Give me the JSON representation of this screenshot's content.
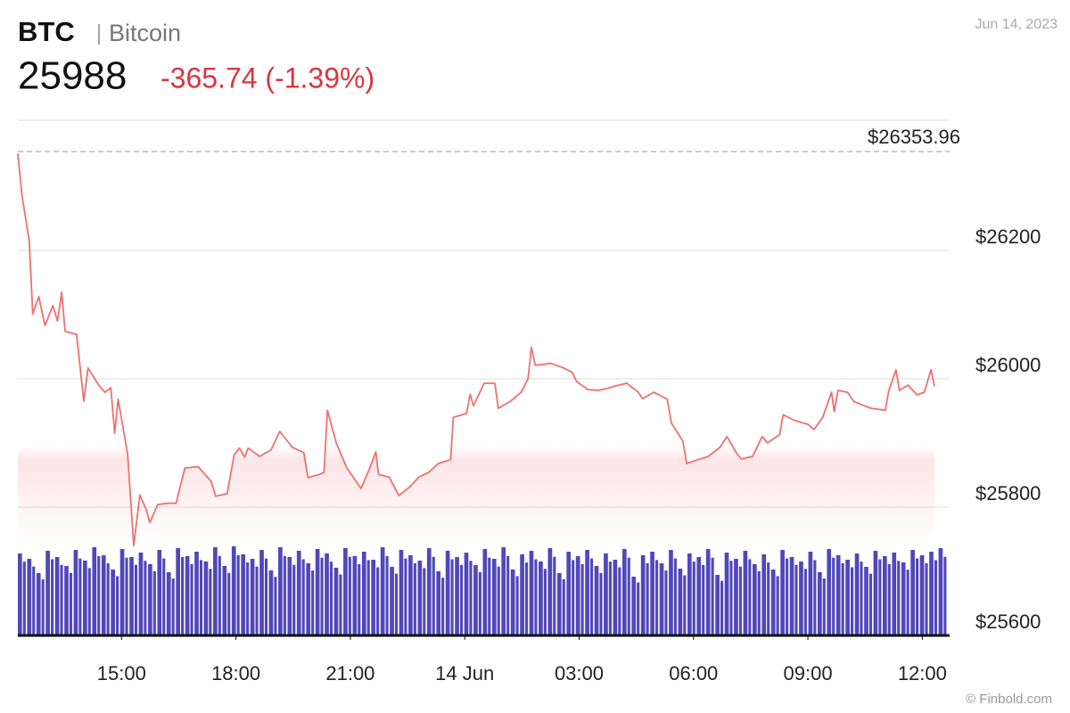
{
  "header": {
    "symbol": "BTC",
    "name": "Bitcoin",
    "price": 25988,
    "change": "-365.74 (-1.39%)",
    "date": "Jun 14, 2023"
  },
  "footer": {
    "credit": "© Finbold.com"
  },
  "chart_data": {
    "type": "line",
    "x": [
      12.28,
      12.39,
      12.58,
      12.67,
      12.83,
      12.99,
      13.2,
      13.32,
      13.43,
      13.52,
      13.82,
      14.01,
      14.12,
      14.4,
      14.56,
      14.72,
      14.82,
      14.91,
      15.16,
      15.32,
      15.48,
      15.65,
      15.74,
      15.95,
      16.2,
      16.43,
      16.66,
      17.01,
      17.35,
      17.47,
      17.77,
      17.95,
      18.09,
      18.23,
      18.32,
      18.62,
      18.92,
      19.15,
      19.48,
      19.78,
      19.89,
      20.19,
      20.31,
      20.4,
      20.63,
      20.91,
      21.28,
      21.51,
      21.67,
      21.74,
      22.02,
      22.27,
      22.55,
      22.8,
      23.05,
      23.31,
      23.63,
      23.7,
      24.05,
      24.14,
      24.23,
      24.51,
      24.79,
      24.88,
      25.2,
      25.48,
      25.66,
      25.75,
      25.85,
      26.26,
      26.59,
      26.82,
      26.93,
      27.23,
      27.51,
      27.74,
      27.97,
      28.25,
      28.55,
      28.66,
      28.96,
      29.31,
      29.42,
      29.72,
      29.82,
      30.12,
      30.39,
      30.69,
      30.88,
      31.11,
      31.25,
      31.55,
      31.8,
      31.94,
      32.26,
      32.35,
      32.65,
      33.0,
      33.16,
      33.39,
      33.62,
      33.69,
      33.79,
      34.04,
      34.2,
      34.39,
      34.66,
      35.03,
      35.12,
      35.31,
      35.4,
      35.63,
      35.86,
      36.05,
      36.23,
      36.32
    ],
    "series": [
      {
        "name": "BTC",
        "color": "#f07070",
        "values": [
          26351,
          26285,
          26215,
          26101,
          26128,
          26083,
          26114,
          26090,
          26135,
          26074,
          26069,
          25965,
          26017,
          25990,
          25979,
          25986,
          25915,
          25968,
          25882,
          25740,
          25819,
          25796,
          25776,
          25804,
          25806,
          25806,
          25861,
          25863,
          25840,
          25817,
          25821,
          25881,
          25892,
          25878,
          25892,
          25879,
          25889,
          25918,
          25893,
          25885,
          25846,
          25851,
          25854,
          25951,
          25900,
          25861,
          25829,
          25861,
          25886,
          25851,
          25847,
          25818,
          25831,
          25847,
          25854,
          25868,
          25874,
          25940,
          25946,
          25976,
          25958,
          25993,
          25993,
          25954,
          25965,
          25979,
          26000,
          26049,
          26021,
          26024,
          26017,
          26010,
          25996,
          25983,
          25982,
          25985,
          25989,
          25993,
          25979,
          25969,
          25979,
          25968,
          25931,
          25903,
          25868,
          25874,
          25879,
          25893,
          25910,
          25886,
          25875,
          25879,
          25910,
          25900,
          25913,
          25944,
          25935,
          25929,
          25921,
          25940,
          25979,
          25949,
          25982,
          25979,
          25965,
          25960,
          25954,
          25951,
          25981,
          26014,
          25982,
          25990,
          25975,
          25979,
          26014,
          25988
        ]
      }
    ],
    "reference": {
      "value": 26353.96,
      "label": "$26353.96"
    },
    "volume": {
      "color": "#5048b8",
      "values": [
        92,
        86,
        70,
        95,
        88,
        78,
        96,
        84,
        99,
        90,
        74,
        97,
        88,
        93,
        80,
        96,
        71,
        98,
        89,
        94,
        83,
        99,
        78,
        100,
        91,
        86,
        96,
        73,
        99,
        88,
        95,
        81,
        97,
        92,
        76,
        98,
        89,
        94,
        85,
        99,
        77,
        96,
        90,
        84,
        98,
        72,
        95,
        88,
        93,
        79,
        97,
        86,
        99,
        74,
        91,
        95,
        83,
        98,
        70,
        94,
        89,
        96,
        78,
        92,
        85,
        97,
        66,
        90,
        94,
        81,
        96,
        75,
        92,
        88,
        97,
        68,
        93,
        86,
        95,
        80,
        91,
        74,
        96,
        88,
        83,
        94,
        71,
        97,
        90,
        85,
        92,
        77,
        95,
        89,
        93,
        82,
        96,
        90,
        94,
        98
      ]
    },
    "xlim": [
      12.28,
      36.67
    ],
    "xticks": [
      {
        "value": 15,
        "label": "15:00"
      },
      {
        "value": 18,
        "label": "18:00"
      },
      {
        "value": 21,
        "label": "21:00"
      },
      {
        "value": 24,
        "label": "14 Jun"
      },
      {
        "value": 27,
        "label": "03:00"
      },
      {
        "value": 30,
        "label": "06:00"
      },
      {
        "value": 33,
        "label": "09:00"
      },
      {
        "value": 36,
        "label": "12:00"
      }
    ],
    "ylim": [
      25600,
      26400
    ],
    "yticks": [
      {
        "value": 25600,
        "label": "$25600"
      },
      {
        "value": 25800,
        "label": "$25800"
      },
      {
        "value": 26000,
        "label": "$26000"
      },
      {
        "value": 26200,
        "label": "$26200"
      }
    ],
    "grid": true
  }
}
